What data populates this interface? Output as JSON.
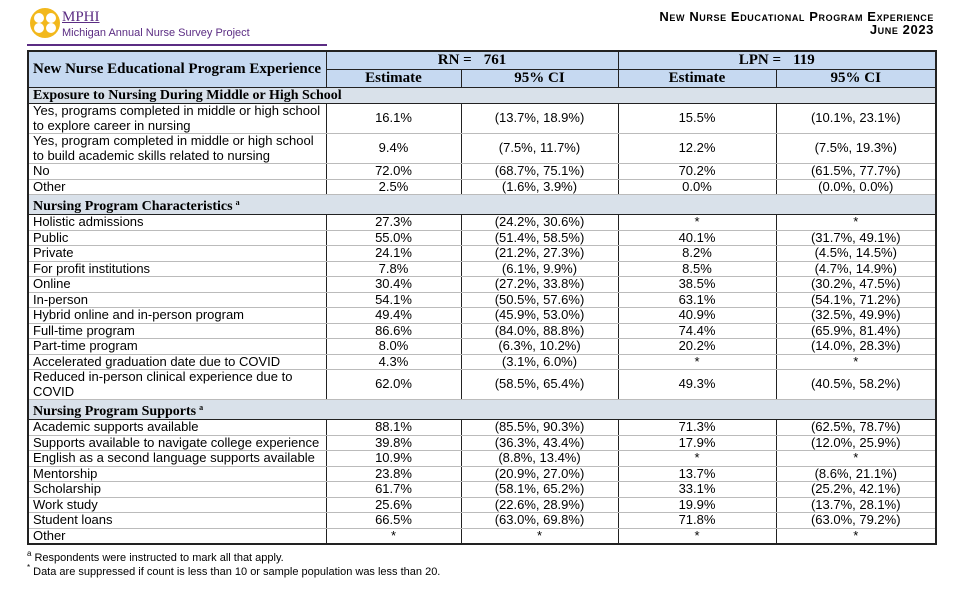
{
  "header": {
    "logo_text": "MPHI",
    "logo_subtitle": "Michigan Annual Nurse Survey Project",
    "title": "New Nurse Educational Program Experience",
    "date": "June 2023"
  },
  "table": {
    "column_header": "New Nurse Educational Program Experience",
    "groups": [
      {
        "label": "RN =",
        "n": "761",
        "columns": [
          "Estimate",
          "95% CI"
        ]
      },
      {
        "label": "LPN =",
        "n": "119",
        "columns": [
          "Estimate",
          "95% CI"
        ]
      }
    ],
    "sections": [
      {
        "title": "Exposure to Nursing During Middle or High School",
        "rows": [
          [
            "Yes, programs completed in middle or high school to explore career in nursing",
            "16.1%",
            "(13.7%, 18.9%)",
            "15.5%",
            "(10.1%, 23.1%)"
          ],
          [
            "Yes, program completed in middle or high school to build academic skills related to nursing",
            "9.4%",
            "(7.5%, 11.7%)",
            "12.2%",
            "(7.5%, 19.3%)"
          ],
          [
            "No",
            "72.0%",
            "(68.7%, 75.1%)",
            "70.2%",
            "(61.5%, 77.7%)"
          ],
          [
            "Other",
            "2.5%",
            "(1.6%, 3.9%)",
            "0.0%",
            "(0.0%, 0.0%)"
          ]
        ]
      },
      {
        "title": "Nursing Program Characteristics",
        "note_mark": "a",
        "rows": [
          [
            "Holistic admissions",
            "27.3%",
            "(24.2%, 30.6%)",
            "*",
            "*"
          ],
          [
            "Public",
            "55.0%",
            "(51.4%, 58.5%)",
            "40.1%",
            "(31.7%, 49.1%)"
          ],
          [
            "Private",
            "24.1%",
            "(21.2%, 27.3%)",
            "8.2%",
            "(4.5%, 14.5%)"
          ],
          [
            "For profit institutions",
            "7.8%",
            "(6.1%, 9.9%)",
            "8.5%",
            "(4.7%, 14.9%)"
          ],
          [
            "Online",
            "30.4%",
            "(27.2%, 33.8%)",
            "38.5%",
            "(30.2%, 47.5%)"
          ],
          [
            "In-person",
            "54.1%",
            "(50.5%, 57.6%)",
            "63.1%",
            "(54.1%, 71.2%)"
          ],
          [
            "Hybrid online and in-person program",
            "49.4%",
            "(45.9%, 53.0%)",
            "40.9%",
            "(32.5%, 49.9%)"
          ],
          [
            "Full-time program",
            "86.6%",
            "(84.0%, 88.8%)",
            "74.4%",
            "(65.9%, 81.4%)"
          ],
          [
            "Part-time program",
            "8.0%",
            "(6.3%, 10.2%)",
            "20.2%",
            "(14.0%, 28.3%)"
          ],
          [
            "Accelerated graduation date due to COVID",
            "4.3%",
            "(3.1%, 6.0%)",
            "*",
            "*"
          ],
          [
            "Reduced in-person clinical experience due to COVID",
            "62.0%",
            "(58.5%, 65.4%)",
            "49.3%",
            "(40.5%, 58.2%)"
          ]
        ]
      },
      {
        "title": "Nursing Program Supports",
        "note_mark": "a",
        "rows": [
          [
            "Academic supports available",
            "88.1%",
            "(85.5%, 90.3%)",
            "71.3%",
            "(62.5%, 78.7%)"
          ],
          [
            "Supports available to navigate college experience",
            "39.8%",
            "(36.3%, 43.4%)",
            "17.9%",
            "(12.0%, 25.9%)"
          ],
          [
            "English as a second language supports available",
            "10.9%",
            "(8.8%, 13.4%)",
            "*",
            "*"
          ],
          [
            "Mentorship",
            "23.8%",
            "(20.9%, 27.0%)",
            "13.7%",
            "(8.6%, 21.1%)"
          ],
          [
            "Scholarship",
            "61.7%",
            "(58.1%, 65.2%)",
            "33.1%",
            "(25.2%, 42.1%)"
          ],
          [
            "Work study",
            "25.6%",
            "(22.6%, 28.9%)",
            "19.9%",
            "(13.7%, 28.1%)"
          ],
          [
            "Student loans",
            "66.5%",
            "(63.0%, 69.8%)",
            "71.8%",
            "(63.0%, 79.2%)"
          ],
          [
            "Other",
            "*",
            "*",
            "*",
            "*"
          ]
        ]
      }
    ]
  },
  "footnotes": [
    {
      "mark": "a",
      "text": "Respondents were instructed to mark all that apply."
    },
    {
      "mark": "*",
      "text": "Data are suppressed if count is less than 10 or sample population was less than 20."
    }
  ]
}
